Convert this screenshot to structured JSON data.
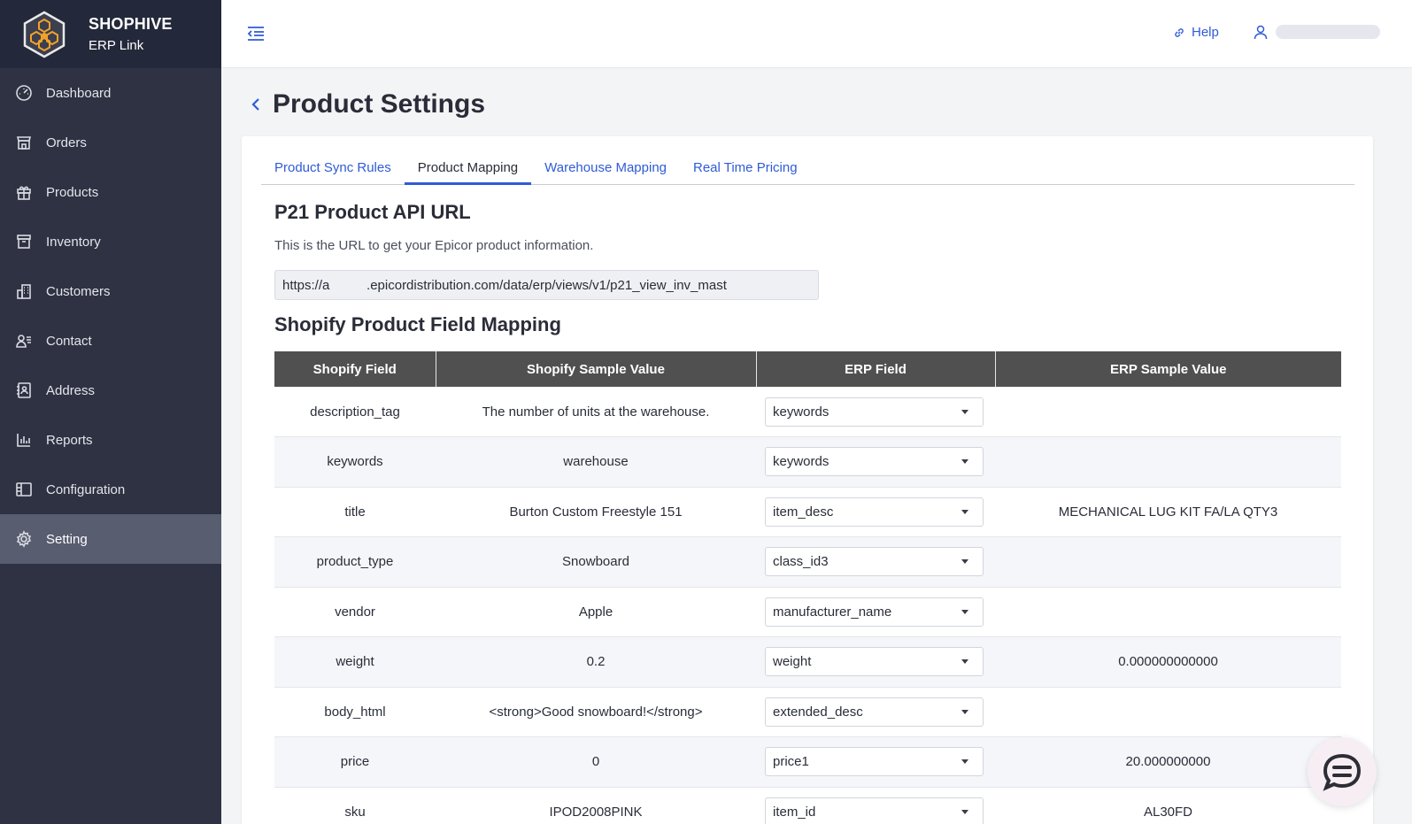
{
  "brand": {
    "name": "SHOPHIVE",
    "subtitle": "ERP Link"
  },
  "sidebar": {
    "items": [
      {
        "label": "Dashboard",
        "icon": "dashboard-icon"
      },
      {
        "label": "Orders",
        "icon": "orders-icon"
      },
      {
        "label": "Products",
        "icon": "gift-icon"
      },
      {
        "label": "Inventory",
        "icon": "archive-icon"
      },
      {
        "label": "Customers",
        "icon": "building-icon"
      },
      {
        "label": "Contact",
        "icon": "contact-icon"
      },
      {
        "label": "Address",
        "icon": "address-book-icon"
      },
      {
        "label": "Reports",
        "icon": "bar-chart-icon"
      },
      {
        "label": "Configuration",
        "icon": "config-icon"
      },
      {
        "label": "Setting",
        "icon": "gear-icon",
        "active": true
      }
    ]
  },
  "header": {
    "help_label": "Help"
  },
  "page": {
    "title": "Product Settings"
  },
  "tabs": [
    {
      "label": "Product Sync Rules"
    },
    {
      "label": "Product Mapping",
      "active": true
    },
    {
      "label": "Warehouse Mapping"
    },
    {
      "label": "Real Time Pricing"
    }
  ],
  "api_section": {
    "title": "P21 Product API URL",
    "description": "This is the URL to get your Epicor product information.",
    "url": "https://a          .epicordistribution.com/data/erp/views/v1/p21_view_inv_mast"
  },
  "mapping_section": {
    "title": "Shopify Product Field Mapping",
    "columns": [
      "Shopify Field",
      "Shopify Sample Value",
      "ERP Field",
      "ERP Sample Value"
    ],
    "rows": [
      {
        "shopify_field": "description_tag",
        "sample": "The number of units at the warehouse.",
        "erp_field": "keywords",
        "erp_sample": ""
      },
      {
        "shopify_field": "keywords",
        "sample": "warehouse",
        "erp_field": "keywords",
        "erp_sample": ""
      },
      {
        "shopify_field": "title",
        "sample": "Burton Custom Freestyle 151",
        "erp_field": "item_desc",
        "erp_sample": "MECHANICAL LUG KIT FA/LA QTY3"
      },
      {
        "shopify_field": "product_type",
        "sample": "Snowboard",
        "erp_field": "class_id3",
        "erp_sample": ""
      },
      {
        "shopify_field": "vendor",
        "sample": "Apple",
        "erp_field": "manufacturer_name",
        "erp_sample": ""
      },
      {
        "shopify_field": "weight",
        "sample": "0.2",
        "erp_field": "weight",
        "erp_sample": "0.000000000000"
      },
      {
        "shopify_field": "body_html",
        "sample": "<strong>Good snowboard!</strong>",
        "erp_field": "extended_desc",
        "erp_sample": ""
      },
      {
        "shopify_field": "price",
        "sample": "0",
        "erp_field": "price1",
        "erp_sample": "20.000000000"
      },
      {
        "shopify_field": "sku",
        "sample": "IPOD2008PINK",
        "erp_field": "item_id",
        "erp_sample": "AL30FD"
      }
    ]
  },
  "colors": {
    "sidebar_bg": "#2e3243",
    "accent": "#2f5bd6",
    "table_header": "#505050"
  }
}
